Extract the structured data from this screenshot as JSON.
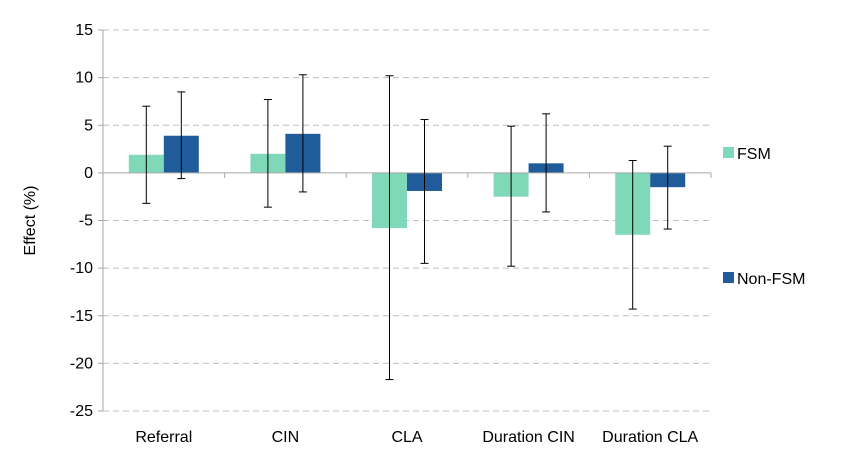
{
  "chart_data": {
    "type": "bar",
    "title": "",
    "xlabel": "",
    "ylabel": "Effect (%)",
    "ylim": [
      -25,
      15
    ],
    "yticks": [
      15,
      10,
      5,
      0,
      -5,
      -10,
      -15,
      -20,
      -25
    ],
    "ytick_labels": [
      "15",
      "10",
      "5",
      "0",
      "-5",
      "-10",
      "-15",
      "-20",
      "-25"
    ],
    "grid": true,
    "legend_position": "right",
    "categories": [
      "Referral",
      "CIN",
      "CLA",
      "Duration CIN",
      "Duration CLA"
    ],
    "series": [
      {
        "name": "FSM",
        "color": "#7fd8b8",
        "values": [
          1.9,
          2.0,
          -5.8,
          -2.5,
          -6.5
        ],
        "err_low": [
          -3.2,
          -3.6,
          -21.7,
          -9.8,
          -14.3
        ],
        "err_high": [
          7.0,
          7.7,
          10.2,
          4.9,
          1.3
        ]
      },
      {
        "name": "Non-FSM",
        "color": "#1f5c99",
        "values": [
          3.9,
          4.1,
          -1.9,
          1.0,
          -1.5
        ],
        "err_low": [
          -0.6,
          -2.0,
          -9.5,
          -4.1,
          -5.9
        ],
        "err_high": [
          8.5,
          10.3,
          5.6,
          6.2,
          2.8
        ]
      }
    ],
    "colors": {
      "grid": "#bfbfbf",
      "axis": "#a6a6a6",
      "error_bar": "#000000",
      "background": "#ffffff"
    }
  }
}
